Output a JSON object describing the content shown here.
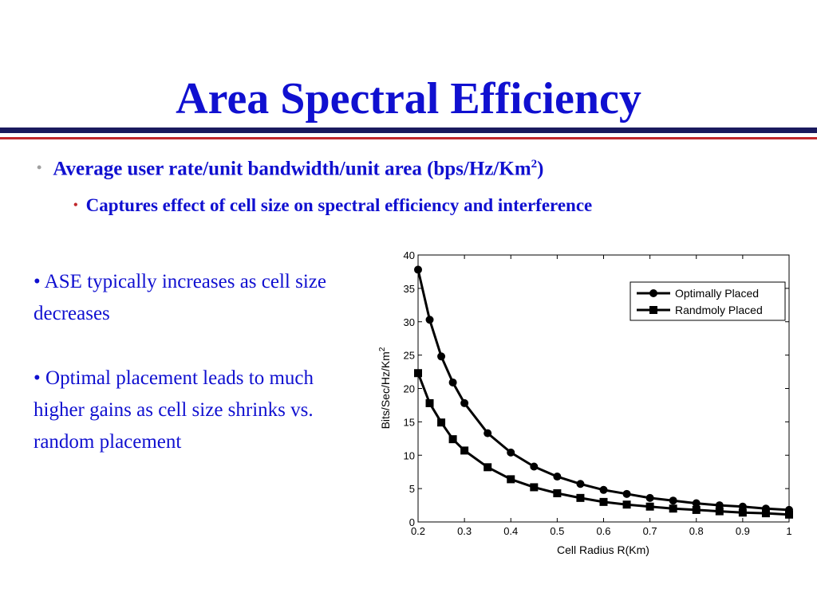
{
  "slide": {
    "title": "Area Spectral Efficiency",
    "bullet_main": "Average user rate/unit bandwidth/unit area (bps/Hz/Km",
    "bullet_main_sup": "2",
    "bullet_main_end": ")",
    "bullet_sub": "Captures effect of cell size on spectral efficiency and interference",
    "side_bullet_1": "ASE typically increases as cell size decreases",
    "side_bullet_2": "Optimal placement leads to much higher gains as cell size shrinks vs. random placement",
    "bullet_glyph": "•"
  },
  "colors": {
    "title": "#1010d0",
    "body_text": "#1010d0",
    "rule_navy": "#1a1a5e",
    "rule_red": "#c0282c",
    "series": "#000000"
  },
  "chart_data": {
    "type": "line",
    "title": "",
    "xlabel": "Cell Radius R(Km)",
    "ylabel": "Bits/Sec/Hz/Km",
    "ylabel_sup": "2",
    "xlim": [
      0.2,
      1
    ],
    "ylim": [
      0,
      40
    ],
    "xticks": [
      "0.2",
      "0.3",
      "0.4",
      "0.5",
      "0.6",
      "0.7",
      "0.8",
      "0.9",
      "1"
    ],
    "yticks": [
      "0",
      "5",
      "10",
      "15",
      "20",
      "25",
      "30",
      "35",
      "40"
    ],
    "grid": false,
    "legend_position": "top-right",
    "series": [
      {
        "name": "Optimally Placed",
        "marker": "circle",
        "x": [
          0.2,
          0.225,
          0.25,
          0.275,
          0.3,
          0.35,
          0.4,
          0.45,
          0.5,
          0.55,
          0.6,
          0.65,
          0.7,
          0.75,
          0.8,
          0.85,
          0.9,
          0.95,
          1.0
        ],
        "y": [
          37.8,
          30.3,
          24.8,
          20.9,
          17.8,
          13.3,
          10.4,
          8.3,
          6.8,
          5.7,
          4.8,
          4.2,
          3.6,
          3.2,
          2.8,
          2.5,
          2.3,
          2.0,
          1.8
        ]
      },
      {
        "name": "Randmoly Placed",
        "marker": "square",
        "x": [
          0.2,
          0.225,
          0.25,
          0.275,
          0.3,
          0.35,
          0.4,
          0.45,
          0.5,
          0.55,
          0.6,
          0.65,
          0.7,
          0.75,
          0.8,
          0.85,
          0.9,
          0.95,
          1.0
        ],
        "y": [
          22.3,
          17.8,
          14.9,
          12.4,
          10.7,
          8.2,
          6.4,
          5.2,
          4.3,
          3.6,
          3.0,
          2.6,
          2.3,
          2.0,
          1.8,
          1.6,
          1.4,
          1.3,
          1.1
        ]
      }
    ]
  }
}
